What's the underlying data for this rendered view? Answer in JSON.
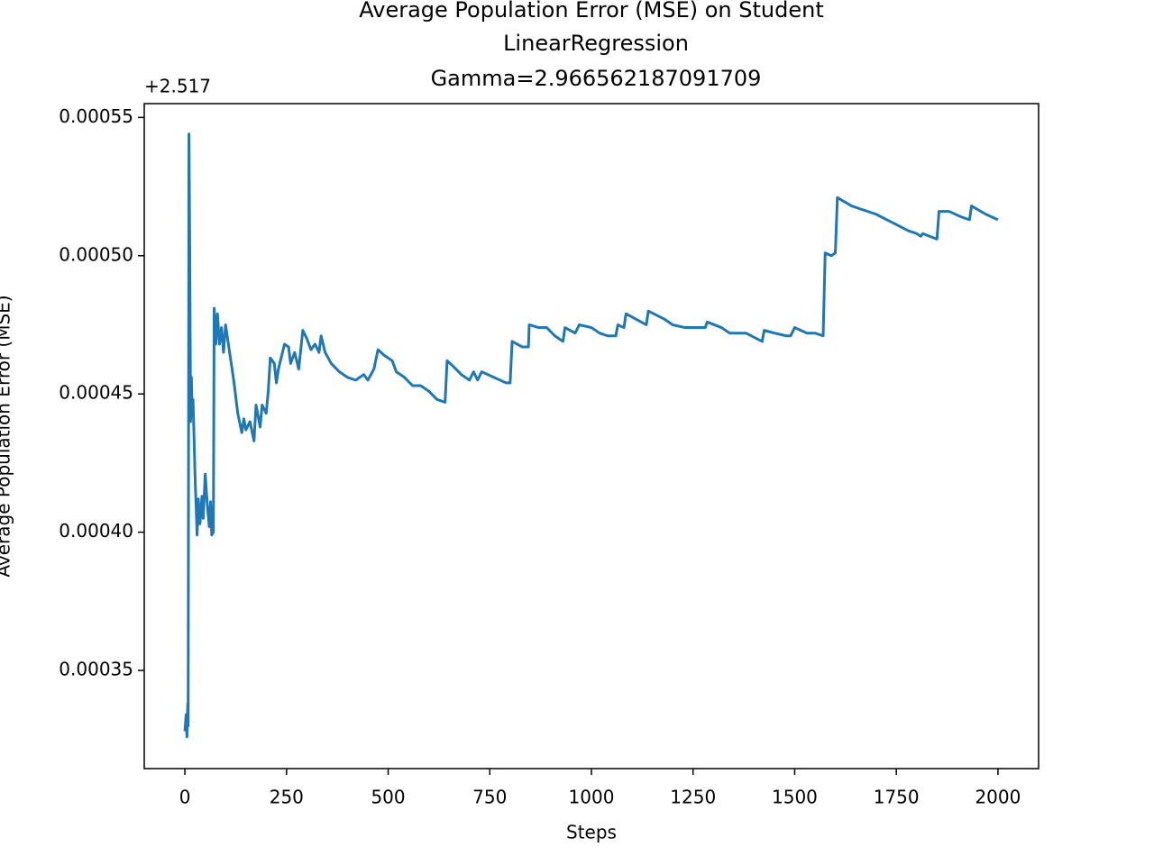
{
  "chart_data": {
    "type": "line",
    "title": [
      "Average Population Error (MSE) on Student",
      "LinearRegression",
      "Gamma=2.966562187091709"
    ],
    "xlabel": "Steps",
    "ylabel": "Average Population Error (MSE)",
    "y_offset_label": "+2.517",
    "xlim": [
      -100,
      2100
    ],
    "ylim": [
      0.0003145,
      0.000555
    ],
    "xticks": [
      0,
      250,
      500,
      750,
      1000,
      1250,
      1500,
      1750,
      2000
    ],
    "yticks": [
      0.00035,
      {
        "value": 0.0004,
        "label": "0.00040"
      },
      0.00045,
      {
        "value": 0.0005,
        "label": "0.00050"
      },
      0.00055
    ],
    "series": [
      {
        "color": "#1f77b4",
        "x": [
          0,
          3,
          5,
          7,
          8,
          10,
          12,
          14,
          16,
          18,
          20,
          25,
          30,
          33,
          37,
          42,
          45,
          50,
          55,
          60,
          63,
          66,
          70,
          72,
          76,
          80,
          85,
          90,
          95,
          100,
          110,
          120,
          130,
          140,
          145,
          150,
          160,
          170,
          175,
          185,
          190,
          200,
          205,
          210,
          220,
          225,
          230,
          245,
          255,
          260,
          270,
          280,
          290,
          300,
          310,
          320,
          330,
          335,
          345,
          360,
          380,
          400,
          420,
          440,
          450,
          465,
          475,
          490,
          510,
          520,
          540,
          560,
          580,
          600,
          620,
          640,
          645,
          660,
          680,
          700,
          710,
          720,
          730,
          760,
          790,
          800,
          805,
          830,
          845,
          847,
          870,
          890,
          910,
          930,
          935,
          960,
          970,
          1000,
          1020,
          1040,
          1060,
          1065,
          1080,
          1085,
          1110,
          1135,
          1140,
          1180,
          1200,
          1230,
          1260,
          1280,
          1285,
          1320,
          1340,
          1380,
          1420,
          1425,
          1450,
          1480,
          1490,
          1500,
          1530,
          1550,
          1570,
          1575,
          1590,
          1600,
          1605,
          1640,
          1660,
          1700,
          1740,
          1780,
          1800,
          1810,
          1815,
          1850,
          1855,
          1880,
          1910,
          1930,
          1935,
          1970,
          2000
        ],
        "values": [
          0.000328,
          0.000334,
          0.000326,
          0.000338,
          0.00033,
          0.000544,
          0.0005,
          0.00044,
          0.000456,
          0.000442,
          0.000448,
          0.00042,
          0.000399,
          0.000412,
          0.000403,
          0.000413,
          0.000405,
          0.000421,
          0.00041,
          0.000402,
          0.000411,
          0.000399,
          0.0004,
          0.000481,
          0.000468,
          0.000479,
          0.000468,
          0.000474,
          0.000465,
          0.000475,
          0.000465,
          0.000455,
          0.000443,
          0.000436,
          0.000441,
          0.000437,
          0.00044,
          0.000433,
          0.000446,
          0.000438,
          0.000446,
          0.000443,
          0.000451,
          0.000463,
          0.000461,
          0.000454,
          0.000459,
          0.000468,
          0.000467,
          0.000461,
          0.000465,
          0.000459,
          0.000473,
          0.00047,
          0.000466,
          0.000468,
          0.000465,
          0.000471,
          0.000465,
          0.000461,
          0.000458,
          0.000456,
          0.000455,
          0.000457,
          0.000455,
          0.000459,
          0.000466,
          0.000464,
          0.000462,
          0.000458,
          0.000456,
          0.000453,
          0.000453,
          0.000451,
          0.000448,
          0.000447,
          0.000462,
          0.00046,
          0.000457,
          0.000455,
          0.000458,
          0.000455,
          0.000458,
          0.000456,
          0.000454,
          0.000454,
          0.000469,
          0.000467,
          0.000467,
          0.000475,
          0.000474,
          0.000474,
          0.000471,
          0.000469,
          0.000474,
          0.000472,
          0.000475,
          0.000474,
          0.000472,
          0.000471,
          0.000471,
          0.000475,
          0.000474,
          0.000479,
          0.000477,
          0.000475,
          0.00048,
          0.000477,
          0.000475,
          0.000474,
          0.000474,
          0.000474,
          0.000476,
          0.000474,
          0.000472,
          0.000472,
          0.000469,
          0.000473,
          0.000472,
          0.000471,
          0.000471,
          0.000474,
          0.000472,
          0.000472,
          0.000471,
          0.000501,
          0.0005,
          0.000501,
          0.000521,
          0.000518,
          0.000517,
          0.000515,
          0.000512,
          0.000509,
          0.000508,
          0.000507,
          0.000508,
          0.000506,
          0.000516,
          0.000516,
          0.000514,
          0.000513,
          0.000518,
          0.000515,
          0.000513
        ]
      }
    ]
  }
}
